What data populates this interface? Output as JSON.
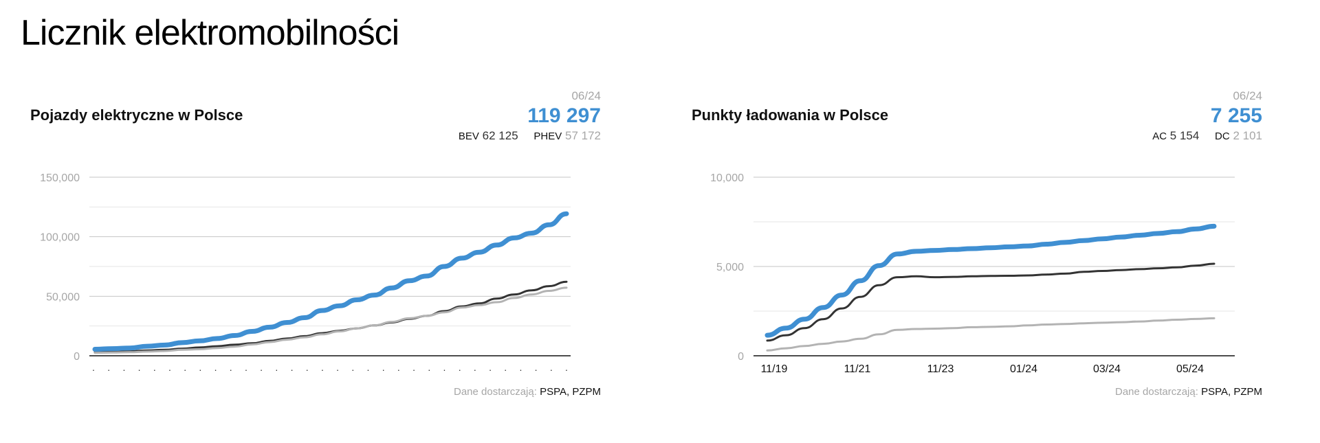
{
  "page": {
    "title": "Licznik elektromobilności"
  },
  "panels": [
    {
      "title": "Pojazdy elektryczne w Polsce",
      "stats": {
        "date": "06/24",
        "total": "119 297",
        "items": [
          {
            "label": "BEV",
            "value": "62 125"
          },
          {
            "label": "PHEV",
            "value": "57 172"
          }
        ]
      },
      "source": {
        "label": "Dane dostarczają:",
        "value": "PSPA, PZPM"
      }
    },
    {
      "title": "Punkty ładowania w Polsce",
      "stats": {
        "date": "06/24",
        "total": "7 255",
        "items": [
          {
            "label": "AC",
            "value": "5 154"
          },
          {
            "label": "DC",
            "value": "2 101"
          }
        ]
      },
      "source": {
        "label": "Dane dostarczają:",
        "value": "PSPA, PZPM"
      }
    }
  ],
  "colors": {
    "total": "#3f8fd2",
    "primary": "#333333",
    "secondary": "#b3b3b3",
    "grid": "#cccccc"
  },
  "chart_data": [
    {
      "type": "line",
      "title": "Pojazdy elektryczne w Polsce",
      "ylim": [
        0,
        150000
      ],
      "yticks": [
        "0",
        "50,000",
        "100,000",
        "150,000"
      ],
      "yticks_values": [
        0,
        50000,
        100000,
        150000
      ],
      "xtick_labels": ".",
      "xtick_count": 32,
      "grid": true,
      "series": [
        {
          "name": "total",
          "color": "#3f8fd2",
          "width": 7,
          "values": [
            5500,
            6000,
            6500,
            8000,
            9000,
            11000,
            12500,
            14500,
            17000,
            20500,
            24000,
            28000,
            32000,
            38000,
            42000,
            47000,
            51000,
            57000,
            63000,
            67000,
            75000,
            82000,
            87000,
            93000,
            99000,
            103000,
            110000,
            119297
          ]
        },
        {
          "name": "BEV",
          "color": "#333333",
          "width": 3,
          "values": [
            3000,
            3300,
            3700,
            4500,
            5000,
            6000,
            7000,
            8000,
            9300,
            10500,
            12500,
            14500,
            16500,
            19000,
            21000,
            23000,
            25500,
            28000,
            31000,
            33500,
            37500,
            41500,
            44000,
            48000,
            51500,
            55000,
            58500,
            62125
          ]
        },
        {
          "name": "PHEV",
          "color": "#b3b3b3",
          "width": 3,
          "values": [
            2500,
            2700,
            3000,
            3500,
            4000,
            5000,
            5500,
            6500,
            7700,
            9500,
            11500,
            13500,
            15500,
            18000,
            20500,
            23000,
            25500,
            28500,
            31500,
            33500,
            36500,
            40500,
            42500,
            45000,
            48500,
            51500,
            54500,
            57172
          ]
        }
      ]
    },
    {
      "type": "line",
      "title": "Punkty ładowania w Polsce",
      "ylim": [
        0,
        10000
      ],
      "yticks": [
        "0",
        "5,000",
        "10,000"
      ],
      "yticks_values": [
        0,
        5000,
        10000
      ],
      "x_labels": [
        "11/19",
        "11/21",
        "11/23",
        "01/24",
        "03/24",
        "05/24"
      ],
      "grid": true,
      "series": [
        {
          "name": "total",
          "color": "#3f8fd2",
          "width": 7,
          "values": [
            1150,
            1550,
            2050,
            2700,
            3400,
            4200,
            5050,
            5700,
            5850,
            5900,
            5950,
            6000,
            6050,
            6100,
            6150,
            6250,
            6350,
            6450,
            6550,
            6650,
            6750,
            6850,
            6950,
            7100,
            7255
          ]
        },
        {
          "name": "AC",
          "color": "#333333",
          "width": 3,
          "values": [
            850,
            1150,
            1550,
            2050,
            2650,
            3300,
            3950,
            4400,
            4450,
            4400,
            4420,
            4450,
            4470,
            4480,
            4500,
            4550,
            4600,
            4700,
            4750,
            4800,
            4850,
            4900,
            4950,
            5050,
            5154
          ]
        },
        {
          "name": "DC",
          "color": "#b3b3b3",
          "width": 3,
          "values": [
            300,
            420,
            550,
            670,
            800,
            950,
            1200,
            1450,
            1500,
            1520,
            1550,
            1600,
            1620,
            1650,
            1700,
            1750,
            1780,
            1820,
            1850,
            1880,
            1920,
            1970,
            2020,
            2060,
            2101
          ]
        }
      ]
    }
  ]
}
